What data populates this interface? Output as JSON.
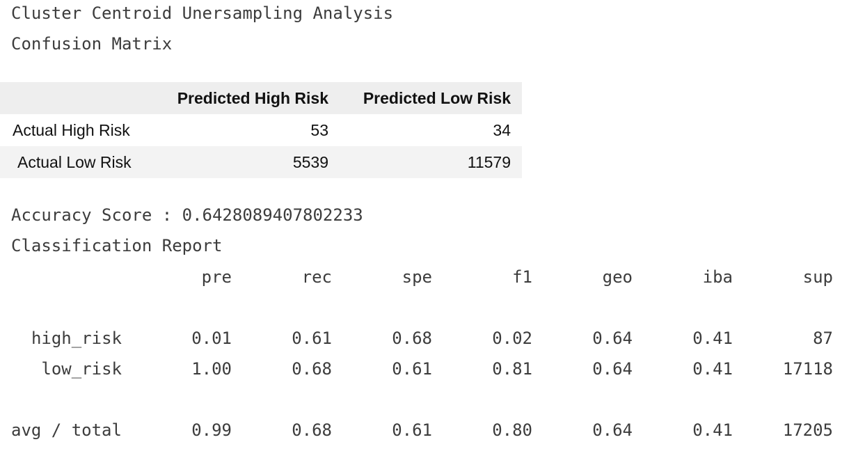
{
  "title": "Cluster Centroid Unersampling Analysis",
  "cm_heading": "Confusion Matrix",
  "confusion_matrix": {
    "columns": [
      "Predicted High Risk",
      "Predicted Low Risk"
    ],
    "rows": [
      {
        "label": "Actual High Risk",
        "values": [
          "53",
          "34"
        ]
      },
      {
        "label": "Actual Low Risk",
        "values": [
          "5539",
          "11579"
        ]
      }
    ]
  },
  "accuracy_line": "Accuracy Score : 0.6428089407802233",
  "report_heading": "Classification Report",
  "report": {
    "columns": [
      "pre",
      "rec",
      "spe",
      "f1",
      "geo",
      "iba",
      "sup"
    ],
    "rows": [
      {
        "label": "high_risk",
        "values": [
          "0.01",
          "0.61",
          "0.68",
          "0.02",
          "0.64",
          "0.41",
          "87"
        ]
      },
      {
        "label": "low_risk",
        "values": [
          "1.00",
          "0.68",
          "0.61",
          "0.81",
          "0.64",
          "0.41",
          "17118"
        ]
      }
    ],
    "total": {
      "label": "avg / total",
      "values": [
        "0.99",
        "0.68",
        "0.61",
        "0.80",
        "0.64",
        "0.41",
        "17205"
      ]
    }
  }
}
